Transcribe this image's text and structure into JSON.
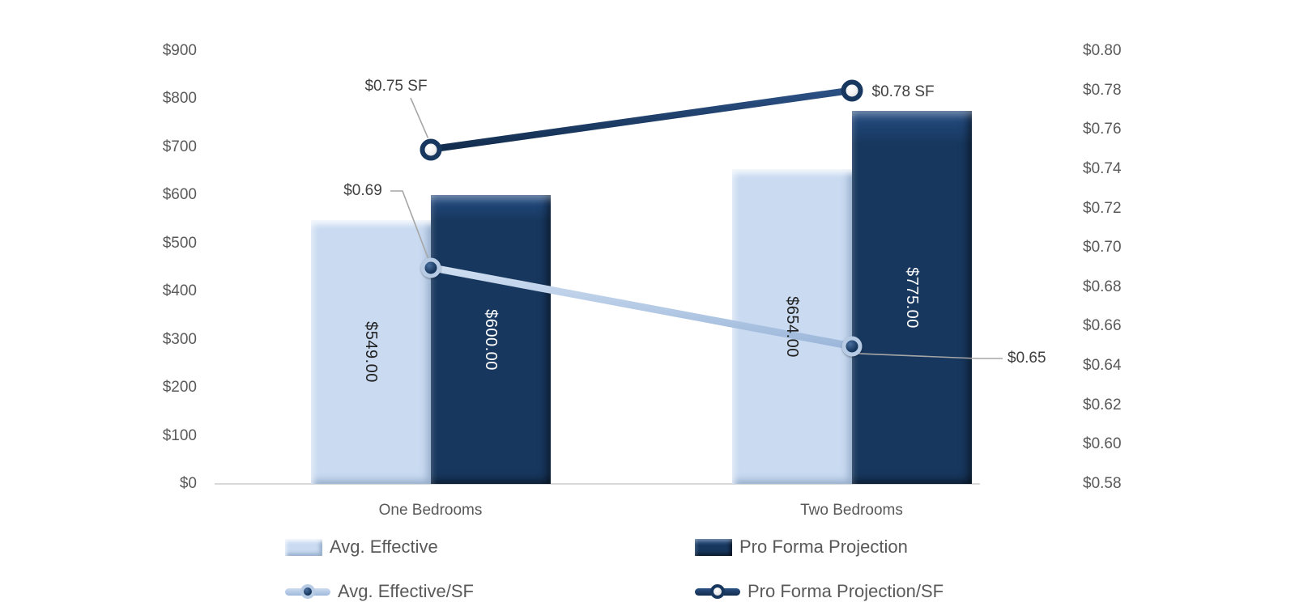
{
  "chart_data": {
    "type": "combo (clustered bar + line, dual axis)",
    "title": "",
    "categories": [
      "One Bedrooms",
      "Two Bedrooms"
    ],
    "bar_series": [
      {
        "name": "Avg. Effective",
        "axis": "left",
        "values": [
          549,
          654
        ],
        "data_labels": [
          "$549.00",
          "$654.00"
        ],
        "fill": "#C9DAF1"
      },
      {
        "name": "Pro Forma Projection",
        "axis": "left",
        "values": [
          600,
          775
        ],
        "data_labels": [
          "$600.00",
          "$775.00"
        ],
        "fill": "#17375E"
      }
    ],
    "line_series": [
      {
        "name": "Avg. Effective/SF",
        "axis": "right",
        "values": [
          0.69,
          0.65
        ],
        "data_labels": [
          "$0.69",
          "$0.65"
        ],
        "stroke": "#AFC7E4",
        "marker": "navy-dot-light-ring"
      },
      {
        "name": "Pro Forma Projection/SF",
        "axis": "right",
        "values": [
          0.75,
          0.78
        ],
        "data_labels": [
          "$0.75 SF",
          "$0.78 SF"
        ],
        "stroke": "#17375E",
        "marker": "white-dot-navy-ring"
      }
    ],
    "left_axis": {
      "min": 0,
      "max": 900,
      "step": 100,
      "tick_labels": [
        "$0",
        "$100",
        "$200",
        "$300",
        "$400",
        "$500",
        "$600",
        "$700",
        "$800",
        "$900"
      ]
    },
    "right_axis": {
      "min": 0.58,
      "max": 0.8,
      "step": 0.02,
      "tick_labels": [
        "$0.58",
        "$0.60",
        "$0.62",
        "$0.64",
        "$0.66",
        "$0.68",
        "$0.70",
        "$0.72",
        "$0.74",
        "$0.76",
        "$0.78",
        "$0.80"
      ]
    },
    "legend": [
      "Avg. Effective",
      "Pro Forma Projection",
      "Avg. Effective/SF",
      "Pro Forma Projection/SF"
    ],
    "legend_position": "bottom",
    "grid": false,
    "colors": {
      "light_blue": "#C9DAF1",
      "navy": "#17375E",
      "light_line": "#AFC7E4",
      "axis_line": "#D9D9D9",
      "tick_text": "#595959",
      "callout_text": "#404040",
      "leader_line": "#A6A6A6"
    }
  }
}
